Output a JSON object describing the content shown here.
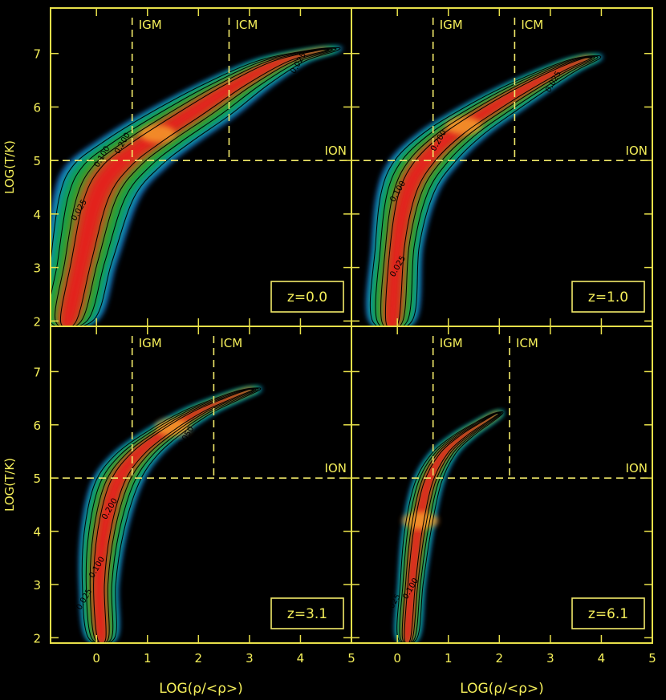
{
  "chart_data": [
    {
      "type": "heatmap",
      "panel": "top-left",
      "redshift_label": "z=0.0",
      "ylabel": "LOG(T/K)",
      "xlabel": "",
      "xlim": [
        -0.9,
        5.0
      ],
      "ylim": [
        1.9,
        7.85
      ],
      "x_ticks": [
        0,
        1,
        2,
        3,
        4,
        5
      ],
      "y_ticks": [
        2,
        3,
        4,
        5,
        6,
        7
      ],
      "show_x_tick_labels": false,
      "show_y_tick_labels": true,
      "guides": {
        "IGM": {
          "label": "IGM",
          "x": 0.7
        },
        "ICM": {
          "label": "ICM",
          "x": 2.6
        },
        "ION": {
          "label": "ION",
          "y": 5.0
        }
      },
      "ridge": [
        [
          -0.55,
          2.0
        ],
        [
          -0.3,
          3.1
        ],
        [
          0.0,
          4.3
        ],
        [
          0.4,
          4.9
        ],
        [
          1.0,
          5.35
        ],
        [
          1.8,
          5.85
        ],
        [
          2.7,
          6.4
        ],
        [
          3.6,
          6.85
        ],
        [
          4.4,
          7.05
        ]
      ],
      "widths": [
        0.55,
        0.7,
        0.85,
        1.0,
        1.0,
        0.95,
        0.75,
        0.55,
        0.35
      ],
      "peak": [
        1.2,
        5.5
      ],
      "contour_labels": [
        {
          "text": "0.025",
          "x": -0.3,
          "y": 4.05
        },
        {
          "text": "0.100",
          "x": 0.15,
          "y": 5.05
        },
        {
          "text": "0.200",
          "x": 0.55,
          "y": 5.3
        },
        {
          "text": "0.025",
          "x": 4.0,
          "y": 6.8
        }
      ]
    },
    {
      "type": "heatmap",
      "panel": "top-right",
      "redshift_label": "z=1.0",
      "ylabel": "",
      "xlabel": "",
      "xlim": [
        -0.9,
        5.0
      ],
      "ylim": [
        1.9,
        7.85
      ],
      "x_ticks": [
        0,
        1,
        2,
        3,
        4,
        5
      ],
      "y_ticks": [
        2,
        3,
        4,
        5,
        6,
        7
      ],
      "show_x_tick_labels": false,
      "show_y_tick_labels": false,
      "guides": {
        "IGM": {
          "label": "IGM",
          "x": 0.7
        },
        "ICM": {
          "label": "ICM",
          "x": 2.3
        },
        "ION": {
          "label": "ION",
          "y": 5.0
        }
      },
      "ridge": [
        [
          -0.1,
          2.0
        ],
        [
          0.0,
          3.4
        ],
        [
          0.2,
          4.4
        ],
        [
          0.55,
          5.0
        ],
        [
          1.1,
          5.5
        ],
        [
          1.8,
          5.95
        ],
        [
          2.5,
          6.35
        ],
        [
          3.2,
          6.7
        ],
        [
          3.7,
          6.9
        ]
      ],
      "widths": [
        0.45,
        0.5,
        0.6,
        0.7,
        0.7,
        0.65,
        0.55,
        0.4,
        0.3
      ],
      "peak": [
        1.3,
        5.65
      ],
      "contour_labels": [
        {
          "text": "0.025",
          "x": 0.05,
          "y": 3.0
        },
        {
          "text": "0.100",
          "x": 0.05,
          "y": 4.4
        },
        {
          "text": "0.200",
          "x": 0.85,
          "y": 5.35
        },
        {
          "text": "0.025",
          "x": 3.1,
          "y": 6.45
        }
      ]
    },
    {
      "type": "heatmap",
      "panel": "bottom-left",
      "redshift_label": "z=3.1",
      "ylabel": "LOG(T/K)",
      "xlabel": "LOG(ρ/<ρ>)",
      "xlim": [
        -0.9,
        5.0
      ],
      "ylim": [
        1.9,
        7.85
      ],
      "x_ticks": [
        0,
        1,
        2,
        3,
        4,
        5
      ],
      "y_ticks": [
        2,
        3,
        4,
        5,
        6,
        7
      ],
      "show_x_tick_labels": true,
      "show_y_tick_labels": true,
      "guides": {
        "IGM": {
          "label": "IGM",
          "x": 0.7
        },
        "ICM": {
          "label": "ICM",
          "x": 2.3
        },
        "ION": {
          "label": "ION",
          "y": 5.0
        }
      },
      "ridge": [
        [
          0.1,
          2.0
        ],
        [
          0.05,
          3.0
        ],
        [
          0.15,
          4.0
        ],
        [
          0.4,
          4.9
        ],
        [
          0.8,
          5.45
        ],
        [
          1.4,
          5.9
        ],
        [
          2.0,
          6.25
        ],
        [
          2.6,
          6.5
        ],
        [
          3.0,
          6.65
        ]
      ],
      "widths": [
        0.3,
        0.38,
        0.45,
        0.5,
        0.48,
        0.42,
        0.36,
        0.3,
        0.22
      ],
      "peak": [
        1.5,
        5.95
      ],
      "contour_labels": [
        {
          "text": "0.025",
          "x": -0.2,
          "y": 2.7
        },
        {
          "text": "0.100",
          "x": 0.05,
          "y": 3.3
        },
        {
          "text": "0.200",
          "x": 0.3,
          "y": 4.4
        },
        {
          "text": "0.050",
          "x": 1.8,
          "y": 5.75
        }
      ]
    },
    {
      "type": "heatmap",
      "panel": "bottom-right",
      "redshift_label": "z=6.1",
      "ylabel": "",
      "xlabel": "LOG(ρ/<ρ>)",
      "xlim": [
        -0.9,
        5.0
      ],
      "ylim": [
        1.9,
        7.85
      ],
      "x_ticks": [
        0,
        1,
        2,
        3,
        4,
        5
      ],
      "y_ticks": [
        2,
        3,
        4,
        5,
        6,
        7
      ],
      "show_x_tick_labels": true,
      "show_y_tick_labels": false,
      "guides": {
        "IGM": {
          "label": "IGM",
          "x": 0.7
        },
        "ICM": {
          "label": "ICM",
          "x": 2.2
        },
        "ION": {
          "label": "ION",
          "y": 5.0
        }
      },
      "ridge": [
        [
          0.2,
          2.0
        ],
        [
          0.28,
          3.0
        ],
        [
          0.4,
          4.0
        ],
        [
          0.6,
          4.9
        ],
        [
          0.9,
          5.45
        ],
        [
          1.3,
          5.8
        ],
        [
          1.7,
          6.05
        ],
        [
          1.95,
          6.2
        ]
      ],
      "widths": [
        0.22,
        0.26,
        0.3,
        0.3,
        0.27,
        0.23,
        0.18,
        0.12
      ],
      "peak": [
        0.45,
        4.2
      ],
      "contour_labels": [
        {
          "text": "0.025",
          "x": -0.05,
          "y": 2.6
        },
        {
          "text": "0.100",
          "x": 0.3,
          "y": 2.9
        }
      ]
    }
  ]
}
